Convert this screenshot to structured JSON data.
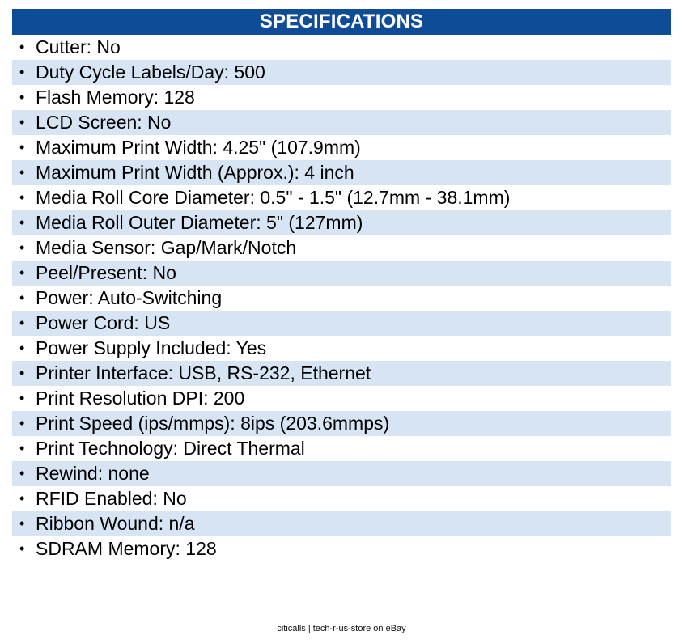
{
  "header": {
    "title": "SPECIFICATIONS"
  },
  "specs": [
    "Cutter: No",
    "Duty Cycle Labels/Day: 500",
    "Flash Memory: 128",
    "LCD Screen: No",
    "Maximum Print Width: 4.25\" (107.9mm)",
    "Maximum Print Width (Approx.): 4 inch",
    "Media Roll Core Diameter: 0.5\" - 1.5\" (12.7mm - 38.1mm)",
    "Media Roll Outer Diameter: 5\" (127mm)",
    "Media Sensor: Gap/Mark/Notch",
    "Peel/Present: No",
    "Power: Auto-Switching",
    "Power Cord: US",
    "Power Supply Included: Yes",
    "Printer Interface: USB, RS-232, Ethernet",
    "Print Resolution DPI: 200",
    "Print Speed (ips/mmps): 8ips (203.6mmps)",
    "Print Technology: Direct Thermal",
    "Rewind: none",
    "RFID Enabled: No",
    "Ribbon Wound: n/a",
    "SDRAM Memory: 128"
  ],
  "bullet": "•",
  "footer": {
    "credit": "citicalls | tech-r-us-store on eBay"
  },
  "colors": {
    "header_bg": "#0f4c98",
    "header_text": "#ffffff",
    "stripe_bg": "#d6e4f4"
  }
}
